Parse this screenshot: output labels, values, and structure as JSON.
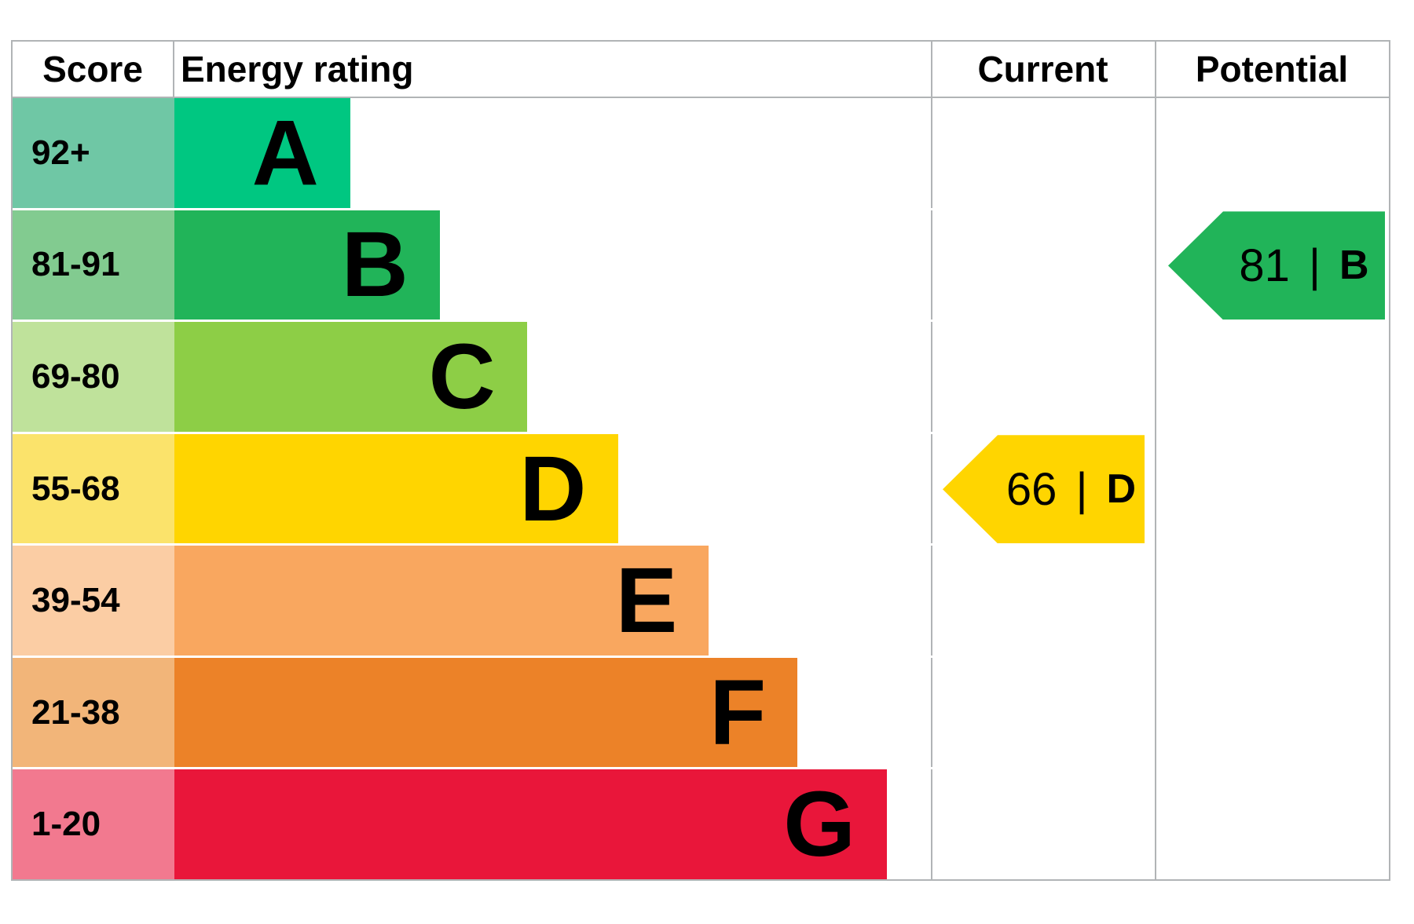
{
  "header": {
    "score": "Score",
    "energy_rating": "Energy rating",
    "current": "Current",
    "potential": "Potential"
  },
  "separator": "|",
  "chart_data": {
    "type": "bar",
    "description": "Energy performance certificate (EPC) energy efficiency rating chart",
    "legend_position": "none",
    "grid": false,
    "bands": [
      {
        "letter": "A",
        "score_range": "92+",
        "min": 92,
        "max": 100,
        "bar_color": "#00c781",
        "score_color": "#6fc7a5",
        "bar_width_pct": 23.2
      },
      {
        "letter": "B",
        "score_range": "81-91",
        "min": 81,
        "max": 91,
        "bar_color": "#21b459",
        "score_color": "#82cb90",
        "bar_width_pct": 35.0
      },
      {
        "letter": "C",
        "score_range": "69-80",
        "min": 69,
        "max": 80,
        "bar_color": "#8dce46",
        "score_color": "#bfe29b",
        "bar_width_pct": 46.5
      },
      {
        "letter": "D",
        "score_range": "55-68",
        "min": 55,
        "max": 68,
        "bar_color": "#ffd500",
        "score_color": "#fbe36b",
        "bar_width_pct": 58.5
      },
      {
        "letter": "E",
        "score_range": "39-54",
        "min": 39,
        "max": 54,
        "bar_color": "#f9a75f",
        "score_color": "#fbcda4",
        "bar_width_pct": 70.5
      },
      {
        "letter": "F",
        "score_range": "21-38",
        "min": 21,
        "max": 38,
        "bar_color": "#ec8228",
        "score_color": "#f2b579",
        "bar_width_pct": 82.2
      },
      {
        "letter": "G",
        "score_range": "1-20",
        "min": 1,
        "max": 20,
        "bar_color": "#e9163a",
        "score_color": "#f2798f",
        "bar_width_pct": 94.0
      }
    ],
    "current": {
      "value": "66",
      "band": "D",
      "color": "#ffd500"
    },
    "potential": {
      "value": "81",
      "band": "B",
      "color": "#21b459"
    }
  }
}
